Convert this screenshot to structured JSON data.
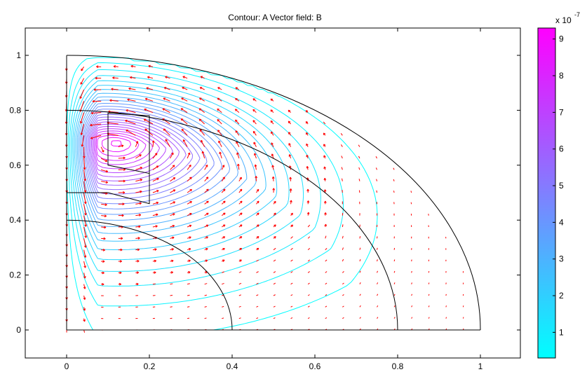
{
  "chart_data": {
    "type": "contour",
    "title": "Contour: A  Vector field: B",
    "xlabel": "",
    "ylabel": "",
    "xlim": [
      -0.1,
      1.1
    ],
    "ylim": [
      -0.1,
      1.1
    ],
    "xticks": [
      "0",
      "0.2",
      "0.4",
      "0.6",
      "0.8",
      "1"
    ],
    "xtick_values": [
      0,
      0.2,
      0.4,
      0.6,
      0.8,
      1.0
    ],
    "yticks": [
      "0",
      "0.2",
      "0.4",
      "0.6",
      "0.8",
      "1"
    ],
    "ytick_values": [
      0,
      0.2,
      0.4,
      0.6,
      0.8,
      1.0
    ],
    "colorbar": {
      "multiplier": "x 10",
      "exponent": "-7",
      "range": [
        0.3,
        9.3
      ],
      "ticks": [
        "1",
        "2",
        "3",
        "4",
        "5",
        "6",
        "7",
        "8",
        "9"
      ],
      "tick_values": [
        1,
        2,
        3,
        4,
        5,
        6,
        7,
        8,
        9
      ],
      "colors": [
        "#00ffff",
        "#ff00ff"
      ]
    },
    "contour_field": "A",
    "vector_field": "B",
    "vector_color": "#ff0000",
    "geometry": {
      "outer_arc_radius": 1.0,
      "mid_arc_radius": 0.8,
      "inner_arc_radius": 0.4,
      "coil_rect": [
        0.1,
        0.6,
        0.2,
        0.8
      ],
      "left_block": [
        0.0,
        0.5,
        0.2,
        0.6
      ]
    },
    "grid": false
  }
}
